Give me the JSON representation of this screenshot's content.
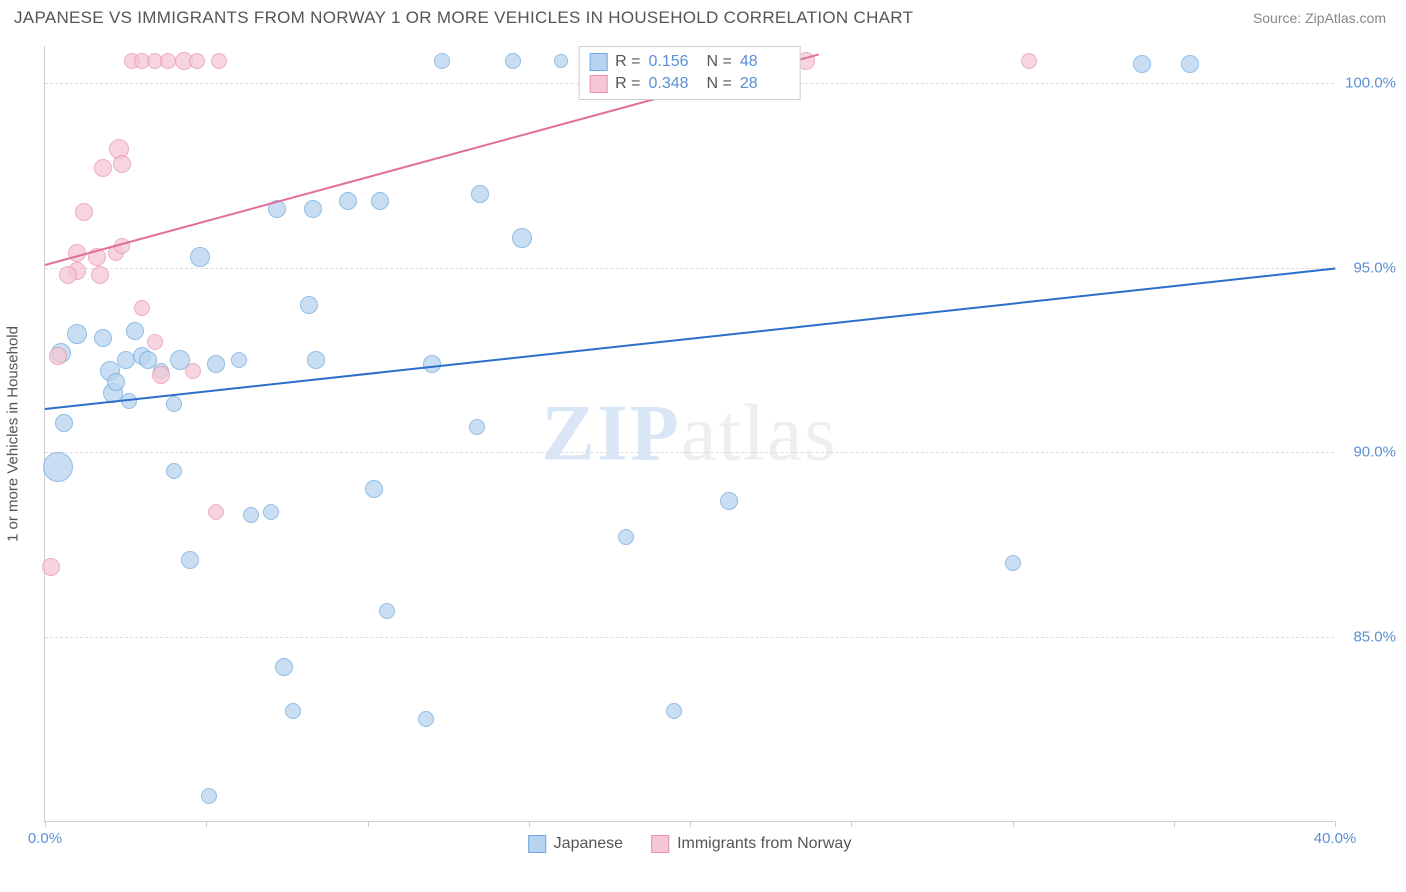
{
  "title": "JAPANESE VS IMMIGRANTS FROM NORWAY 1 OR MORE VEHICLES IN HOUSEHOLD CORRELATION CHART",
  "source": "Source: ZipAtlas.com",
  "watermark_prefix": "ZIP",
  "watermark_suffix": "atlas",
  "chart": {
    "type": "scatter",
    "ylabel": "1 or more Vehicles in Household",
    "xlim": [
      0,
      40
    ],
    "ylim": [
      80,
      101
    ],
    "xtick_positions": [
      0,
      5,
      10,
      15,
      20,
      25,
      30,
      35,
      40
    ],
    "xtick_labels": {
      "0": "0.0%",
      "40": "40.0%"
    },
    "ytick_positions": [
      85,
      90,
      95,
      100
    ],
    "ytick_labels": [
      "85.0%",
      "90.0%",
      "95.0%",
      "100.0%"
    ],
    "grid_color": "#dddddd",
    "axis_color": "#cccccc",
    "background_color": "#ffffff",
    "series": [
      {
        "name": "Japanese",
        "label": "Japanese",
        "fill": "#b8d4f0",
        "stroke": "#6fa8dc",
        "opacity": 0.75,
        "r_value": "0.156",
        "n_value": "48",
        "trend": {
          "x1": 0,
          "y1": 91.2,
          "x2": 40,
          "y2": 95.0,
          "color": "#2c6fc9",
          "width": 2
        },
        "points": [
          {
            "x": 12.3,
            "y": 100.6,
            "r": 8
          },
          {
            "x": 14.5,
            "y": 100.6,
            "r": 8
          },
          {
            "x": 34.0,
            "y": 100.5,
            "r": 9
          },
          {
            "x": 35.5,
            "y": 100.5,
            "r": 9
          },
          {
            "x": 16.0,
            "y": 100.6,
            "r": 7
          },
          {
            "x": 1.0,
            "y": 93.2,
            "r": 10
          },
          {
            "x": 0.5,
            "y": 92.7,
            "r": 10
          },
          {
            "x": 0.4,
            "y": 89.6,
            "r": 15
          },
          {
            "x": 0.6,
            "y": 90.8,
            "r": 9
          },
          {
            "x": 1.8,
            "y": 93.1,
            "r": 9
          },
          {
            "x": 2.0,
            "y": 92.2,
            "r": 10
          },
          {
            "x": 2.1,
            "y": 91.6,
            "r": 10
          },
          {
            "x": 2.5,
            "y": 92.5,
            "r": 9
          },
          {
            "x": 2.2,
            "y": 91.9,
            "r": 9
          },
          {
            "x": 3.0,
            "y": 92.6,
            "r": 9
          },
          {
            "x": 2.8,
            "y": 93.3,
            "r": 9
          },
          {
            "x": 3.2,
            "y": 92.5,
            "r": 9
          },
          {
            "x": 2.6,
            "y": 91.4,
            "r": 8
          },
          {
            "x": 3.6,
            "y": 92.2,
            "r": 8
          },
          {
            "x": 4.2,
            "y": 92.5,
            "r": 10
          },
          {
            "x": 4.0,
            "y": 91.3,
            "r": 8
          },
          {
            "x": 4.0,
            "y": 89.5,
            "r": 8
          },
          {
            "x": 4.8,
            "y": 95.3,
            "r": 10
          },
          {
            "x": 4.5,
            "y": 87.1,
            "r": 9
          },
          {
            "x": 5.3,
            "y": 92.4,
            "r": 9
          },
          {
            "x": 5.1,
            "y": 80.7,
            "r": 8
          },
          {
            "x": 6.0,
            "y": 92.5,
            "r": 8
          },
          {
            "x": 6.4,
            "y": 88.3,
            "r": 8
          },
          {
            "x": 7.2,
            "y": 96.6,
            "r": 9
          },
          {
            "x": 7.0,
            "y": 88.4,
            "r": 8
          },
          {
            "x": 7.4,
            "y": 84.2,
            "r": 9
          },
          {
            "x": 7.7,
            "y": 83.0,
            "r": 8
          },
          {
            "x": 8.2,
            "y": 94.0,
            "r": 9
          },
          {
            "x": 8.4,
            "y": 92.5,
            "r": 9
          },
          {
            "x": 8.3,
            "y": 96.6,
            "r": 9
          },
          {
            "x": 9.4,
            "y": 96.8,
            "r": 9
          },
          {
            "x": 10.4,
            "y": 96.8,
            "r": 9
          },
          {
            "x": 10.6,
            "y": 85.7,
            "r": 8
          },
          {
            "x": 10.2,
            "y": 89.0,
            "r": 9
          },
          {
            "x": 12.0,
            "y": 92.4,
            "r": 9
          },
          {
            "x": 11.8,
            "y": 82.8,
            "r": 8
          },
          {
            "x": 13.4,
            "y": 90.7,
            "r": 8
          },
          {
            "x": 13.5,
            "y": 97.0,
            "r": 9
          },
          {
            "x": 14.8,
            "y": 95.8,
            "r": 10
          },
          {
            "x": 18.0,
            "y": 87.7,
            "r": 8
          },
          {
            "x": 19.5,
            "y": 83.0,
            "r": 8
          },
          {
            "x": 21.2,
            "y": 88.7,
            "r": 9
          },
          {
            "x": 30.0,
            "y": 87.0,
            "r": 8
          }
        ]
      },
      {
        "name": "Immigrants from Norway",
        "label": "Immigrants from Norway",
        "fill": "#f5c6d6",
        "stroke": "#e893af",
        "opacity": 0.75,
        "r_value": "0.348",
        "n_value": "28",
        "trend": {
          "x1": 0,
          "y1": 95.1,
          "x2": 24,
          "y2": 100.8,
          "color": "#e16f93",
          "width": 2
        },
        "points": [
          {
            "x": 2.7,
            "y": 100.6,
            "r": 8
          },
          {
            "x": 3.0,
            "y": 100.6,
            "r": 8
          },
          {
            "x": 3.4,
            "y": 100.6,
            "r": 8
          },
          {
            "x": 3.8,
            "y": 100.6,
            "r": 8
          },
          {
            "x": 4.3,
            "y": 100.6,
            "r": 9
          },
          {
            "x": 4.7,
            "y": 100.6,
            "r": 8
          },
          {
            "x": 5.4,
            "y": 100.6,
            "r": 8
          },
          {
            "x": 21.5,
            "y": 100.6,
            "r": 8
          },
          {
            "x": 23.6,
            "y": 100.6,
            "r": 9
          },
          {
            "x": 30.5,
            "y": 100.6,
            "r": 8
          },
          {
            "x": 1.8,
            "y": 97.7,
            "r": 9
          },
          {
            "x": 2.3,
            "y": 98.2,
            "r": 10
          },
          {
            "x": 2.4,
            "y": 97.8,
            "r": 9
          },
          {
            "x": 1.2,
            "y": 96.5,
            "r": 9
          },
          {
            "x": 1.0,
            "y": 94.9,
            "r": 9
          },
          {
            "x": 0.7,
            "y": 94.8,
            "r": 9
          },
          {
            "x": 1.0,
            "y": 95.4,
            "r": 9
          },
          {
            "x": 1.6,
            "y": 95.3,
            "r": 9
          },
          {
            "x": 1.7,
            "y": 94.8,
            "r": 9
          },
          {
            "x": 2.2,
            "y": 95.4,
            "r": 8
          },
          {
            "x": 2.4,
            "y": 95.6,
            "r": 8
          },
          {
            "x": 3.0,
            "y": 93.9,
            "r": 8
          },
          {
            "x": 3.4,
            "y": 93.0,
            "r": 8
          },
          {
            "x": 3.6,
            "y": 92.1,
            "r": 9
          },
          {
            "x": 4.6,
            "y": 92.2,
            "r": 8
          },
          {
            "x": 5.3,
            "y": 88.4,
            "r": 8
          },
          {
            "x": 0.4,
            "y": 92.6,
            "r": 9
          },
          {
            "x": 0.2,
            "y": 86.9,
            "r": 9
          }
        ]
      }
    ],
    "legend_r_label": "R  =",
    "legend_n_label": "N  ="
  }
}
